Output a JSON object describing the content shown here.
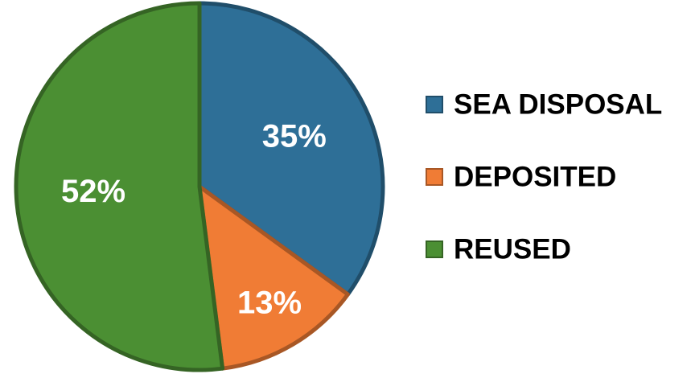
{
  "chart_data": {
    "type": "pie",
    "categories": [
      "SEA DISPOSAL",
      "DEPOSITED",
      "REUSED"
    ],
    "values": [
      35,
      13,
      52
    ],
    "value_labels": [
      "35%",
      "13%",
      "52%"
    ],
    "colors": [
      "#2e6f97",
      "#f07c35",
      "#4b8f33"
    ],
    "legend": "right"
  }
}
